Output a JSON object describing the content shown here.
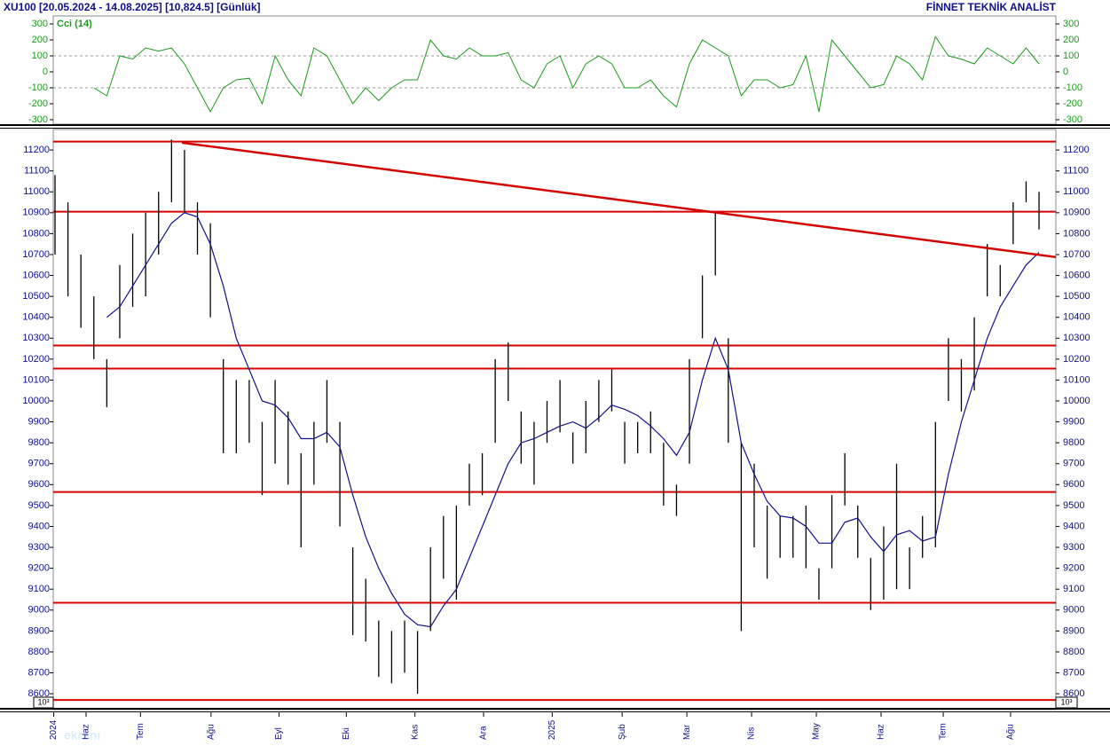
{
  "header": {
    "title": "XU100  [20.05.2024 - 14.08.2025]  [10,824.5]  [Günlük]",
    "source": "FİNNET TEKNİK ANALİST",
    "axis_multiplier": "10³",
    "watermark": "ekranı"
  },
  "chart_data": [
    {
      "type": "line",
      "title": "Cci (14)",
      "color": "#1a9a1a",
      "ylim": [
        -328,
        350
      ],
      "yticks": [
        300,
        200,
        100,
        0,
        -100,
        -200,
        -300
      ],
      "grid_levels": [
        100,
        -100
      ],
      "values": [
        null,
        null,
        null,
        -100,
        -150,
        100,
        80,
        150,
        130,
        150,
        50,
        -100,
        -250,
        -100,
        -50,
        -40,
        -200,
        100,
        -50,
        -150,
        150,
        100,
        -50,
        -200,
        -100,
        -180,
        -100,
        -50,
        -50,
        200,
        100,
        80,
        150,
        100,
        100,
        120,
        -50,
        -100,
        50,
        100,
        -100,
        50,
        100,
        50,
        -100,
        -100,
        -50,
        -150,
        -220,
        50,
        200,
        150,
        100,
        -150,
        -50,
        -50,
        -100,
        -80,
        100,
        -250,
        200,
        100,
        0,
        -100,
        -80,
        100,
        50,
        -50,
        220,
        100,
        80,
        50,
        150,
        100,
        50,
        150,
        50
      ]
    },
    {
      "type": "hl-bar",
      "color": "#000000",
      "xlim": [
        0,
        77.3
      ],
      "ylim": [
        8524,
        11298
      ],
      "yticks": [
        11200,
        11100,
        11000,
        10900,
        10800,
        10700,
        10600,
        10500,
        10400,
        10300,
        10200,
        10100,
        10000,
        9900,
        9800,
        9700,
        9600,
        9500,
        9400,
        9300,
        9200,
        9100,
        9000,
        8900,
        8800,
        8700,
        8600
      ],
      "xticks": [
        {
          "value": -0.1,
          "label": "2024"
        },
        {
          "value": 2.4,
          "label": "Haz"
        },
        {
          "value": 6.6,
          "label": "Tem"
        },
        {
          "value": 12.05,
          "label": "Ağu"
        },
        {
          "value": 17.3,
          "label": "Eyl"
        },
        {
          "value": 22.5,
          "label": "Eki"
        },
        {
          "value": 27.8,
          "label": "Kas"
        },
        {
          "value": 33.1,
          "label": "Ara"
        },
        {
          "value": 38.4,
          "label": "2025"
        },
        {
          "value": 43.8,
          "label": "Şub"
        },
        {
          "value": 48.8,
          "label": "Mar"
        },
        {
          "value": 53.8,
          "label": "Nis"
        },
        {
          "value": 58.8,
          "label": "May"
        },
        {
          "value": 63.8,
          "label": "Haz"
        },
        {
          "value": 68.6,
          "label": "Tem"
        },
        {
          "value": 73.8,
          "label": "Ağu"
        }
      ],
      "high": [
        11080,
        10950,
        10700,
        10500,
        10200,
        10650,
        10800,
        10900,
        11000,
        11250,
        11200,
        10950,
        10850,
        10200,
        10100,
        10100,
        9900,
        10100,
        9950,
        9750,
        9900,
        10100,
        9900,
        9300,
        9150,
        8950,
        8900,
        8950,
        8900,
        9300,
        9450,
        9500,
        9700,
        9750,
        10200,
        10280,
        9950,
        9900,
        10000,
        10100,
        9850,
        10000,
        10100,
        10150,
        9900,
        9900,
        9950,
        9800,
        9600,
        10200,
        10600,
        10900,
        10300,
        9800,
        9700,
        9500,
        9450,
        9450,
        9500,
        9200,
        9550,
        9750,
        9500,
        9250,
        9400,
        9700,
        9300,
        9450,
        9900,
        10300,
        10200,
        10400,
        10750,
        10650,
        10950,
        11050,
        11000
      ],
      "low": [
        10700,
        10500,
        10350,
        10200,
        9970,
        10300,
        10450,
        10500,
        10700,
        10950,
        10900,
        10700,
        10400,
        9750,
        9750,
        9800,
        9550,
        9700,
        9600,
        9300,
        9600,
        9800,
        9400,
        8880,
        8850,
        8680,
        8650,
        8700,
        8600,
        8900,
        9150,
        9050,
        9500,
        9550,
        9800,
        10000,
        9700,
        9600,
        9800,
        9850,
        9700,
        9750,
        9900,
        9950,
        9700,
        9750,
        9750,
        9500,
        9450,
        9700,
        10300,
        10600,
        9800,
        8900,
        9300,
        9150,
        9250,
        9250,
        9200,
        9050,
        9200,
        9500,
        9250,
        9000,
        9050,
        9100,
        9100,
        9250,
        9300,
        10000,
        9950,
        10050,
        10500,
        10500,
        10750,
        10950,
        10820
      ],
      "ma": {
        "color": "#10108c",
        "values": [
          null,
          null,
          null,
          null,
          10400,
          10450,
          10550,
          10650,
          10750,
          10850,
          10900,
          10880,
          10750,
          10550,
          10300,
          10150,
          10000,
          9980,
          9920,
          9820,
          9820,
          9850,
          9780,
          9550,
          9350,
          9200,
          9080,
          8980,
          8930,
          8920,
          9020,
          9100,
          9250,
          9400,
          9550,
          9700,
          9800,
          9820,
          9850,
          9880,
          9900,
          9870,
          9920,
          9980,
          9960,
          9930,
          9880,
          9820,
          9740,
          9850,
          10100,
          10300,
          10150,
          9800,
          9650,
          9520,
          9450,
          9440,
          9400,
          9320,
          9320,
          9420,
          9440,
          9350,
          9280,
          9360,
          9380,
          9330,
          9350,
          9650,
          9900,
          10100,
          10300,
          10450,
          10550,
          10650,
          10710
        ]
      },
      "level_color": "#d40000",
      "levels": [
        11240,
        10905,
        10265,
        10155,
        9565,
        9035,
        8570
      ],
      "trendline": {
        "x": [
          9.8,
          77.3
        ],
        "y": [
          11235,
          10688
        ]
      }
    }
  ]
}
